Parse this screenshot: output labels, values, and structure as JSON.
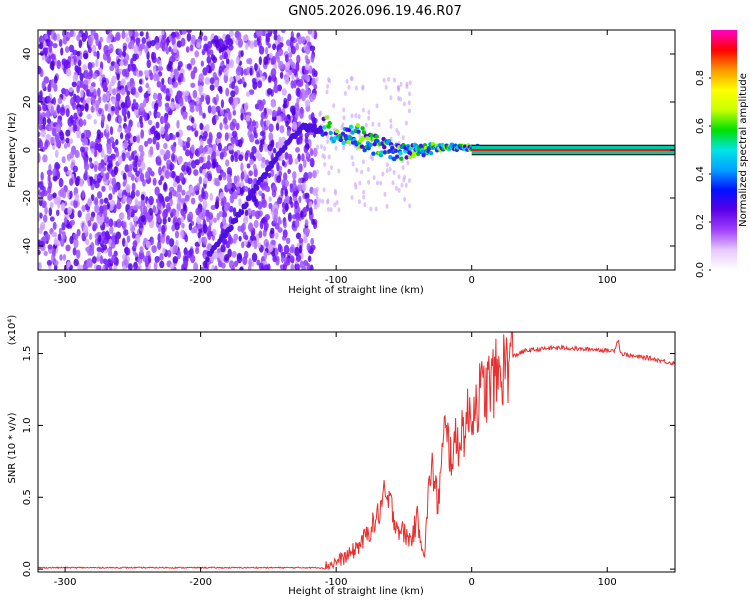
{
  "figure": {
    "title": "GN05.2026.096.19.46.R07"
  },
  "chart_data": [
    {
      "type": "heatmap",
      "xlabel": "Height of straight line (km)",
      "ylabel": "Frequency (Hz)",
      "xlim": [
        -320,
        150
      ],
      "ylim": [
        -50,
        50
      ],
      "x_ticks": [
        -300,
        -200,
        -100,
        0,
        100
      ],
      "y_ticks": [
        -40,
        -20,
        0,
        20,
        40
      ],
      "colorbar": {
        "label": "Normalized spectral amplitude",
        "range": [
          0,
          1
        ],
        "ticks": [
          0.0,
          0.2,
          0.4,
          0.6,
          0.8
        ],
        "colors": [
          "#ffffff",
          "#e6c8ff",
          "#a040ff",
          "#5a00e6",
          "#0010ff",
          "#00a0ff",
          "#00e6e6",
          "#00e000",
          "#c8ff00",
          "#ffff00",
          "#ff9600",
          "#ff0000",
          "#ff00c8"
        ]
      },
      "noise_region_x": [
        -320,
        -115
      ],
      "carrier_line": {
        "x": [
          0,
          150
        ],
        "y": 0,
        "band": [
          -2,
          2
        ]
      },
      "trajectory": [
        {
          "x": -195,
          "y": -45
        },
        {
          "x": -175,
          "y": -30
        },
        {
          "x": -155,
          "y": -12
        },
        {
          "x": -140,
          "y": 0
        },
        {
          "x": -125,
          "y": 10
        },
        {
          "x": -110,
          "y": 8
        }
      ],
      "signal_ridge": [
        {
          "x": -110,
          "y": 8
        },
        {
          "x": -95,
          "y": 7
        },
        {
          "x": -85,
          "y": 6
        },
        {
          "x": -75,
          "y": 3
        },
        {
          "x": -65,
          "y": 1
        },
        {
          "x": -55,
          "y": -1
        },
        {
          "x": -45,
          "y": 0
        },
        {
          "x": -35,
          "y": 0
        },
        {
          "x": -25,
          "y": 1
        },
        {
          "x": -15,
          "y": 1
        },
        {
          "x": -5,
          "y": 1
        },
        {
          "x": 5,
          "y": 1
        }
      ]
    },
    {
      "type": "line",
      "xlabel": "Height of straight line (km)",
      "ylabel": "SNR (10 * v/v)",
      "y_scale_note": "(x10⁴)",
      "xlim": [
        -320,
        150
      ],
      "ylim": [
        -0.02,
        1.65
      ],
      "x_ticks": [
        -300,
        -200,
        -100,
        0,
        100
      ],
      "y_ticks": [
        0.0,
        0.5,
        1.0,
        1.5
      ],
      "color": "#e8302e",
      "series": [
        {
          "x": [
            -320,
            -250,
            -200,
            -150,
            -110,
            -100,
            -90,
            -80,
            -70,
            -65,
            -60,
            -55,
            -50,
            -45,
            -40,
            -35,
            -30,
            -25,
            -20,
            -15,
            -10,
            -5,
            0,
            5,
            10,
            15,
            20,
            25,
            30,
            40,
            50,
            60,
            70,
            80,
            90,
            100,
            105,
            108,
            110,
            120,
            130,
            140,
            150
          ],
          "y": [
            0.01,
            0.01,
            0.01,
            0.01,
            0.01,
            0.05,
            0.1,
            0.2,
            0.35,
            0.5,
            0.45,
            0.3,
            0.25,
            0.2,
            0.35,
            0.1,
            0.75,
            0.45,
            0.95,
            0.8,
            0.9,
            1.0,
            1.1,
            1.2,
            1.25,
            1.3,
            1.35,
            1.42,
            1.48,
            1.52,
            1.53,
            1.54,
            1.54,
            1.53,
            1.53,
            1.52,
            1.52,
            1.6,
            1.5,
            1.48,
            1.47,
            1.45,
            1.43
          ]
        }
      ]
    }
  ]
}
